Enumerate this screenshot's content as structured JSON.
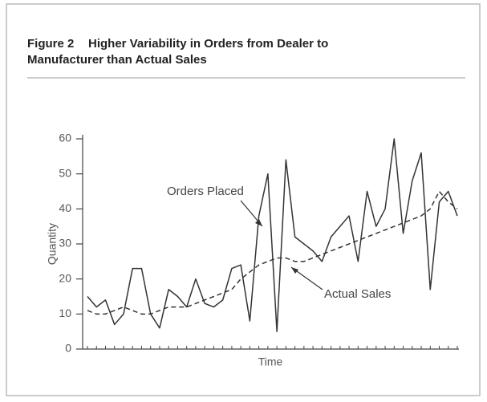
{
  "chart_data": {
    "type": "line",
    "figure_label": "Figure 2",
    "title": [
      "Higher Variability in Orders from Dealer to",
      "Manufacturer than Actual Sales"
    ],
    "ylabel": "Quantity",
    "xlabel": "Time",
    "categories": [
      null,
      null,
      null,
      null,
      null,
      null,
      null,
      null,
      null,
      null,
      null,
      null,
      null,
      null,
      null,
      null,
      null,
      null,
      null,
      null,
      null,
      null,
      null,
      null,
      null,
      null,
      null,
      null,
      null,
      null,
      null,
      null,
      null,
      null,
      null,
      null,
      null,
      null,
      null,
      null,
      null,
      null
    ],
    "series": [
      {
        "name": "Orders Placed",
        "color": "#333333",
        "dash": false,
        "values": [
          15,
          12,
          14,
          7,
          10,
          23,
          23,
          10,
          6,
          17,
          15,
          12,
          20,
          13,
          12,
          14,
          23,
          24,
          8,
          38,
          50,
          5,
          54,
          32,
          30,
          28,
          25,
          32,
          35,
          38,
          25,
          45,
          35,
          40,
          60,
          33,
          48,
          56,
          17,
          42,
          45,
          38
        ]
      },
      {
        "name": "Actual Sales",
        "color": "#333333",
        "dash": true,
        "values": [
          11,
          10,
          10,
          11,
          12,
          11,
          10,
          10,
          11,
          12,
          12,
          12,
          13,
          14,
          15,
          16,
          17,
          20,
          22,
          24,
          25,
          26,
          26,
          25,
          25,
          26,
          27,
          28,
          29,
          30,
          31,
          32,
          33,
          34,
          35,
          36,
          37,
          38,
          40,
          45,
          42,
          40
        ]
      }
    ],
    "ylim": [
      0,
      60
    ],
    "yticks": [
      0,
      10,
      20,
      30,
      40,
      50,
      60
    ],
    "grid": false
  }
}
